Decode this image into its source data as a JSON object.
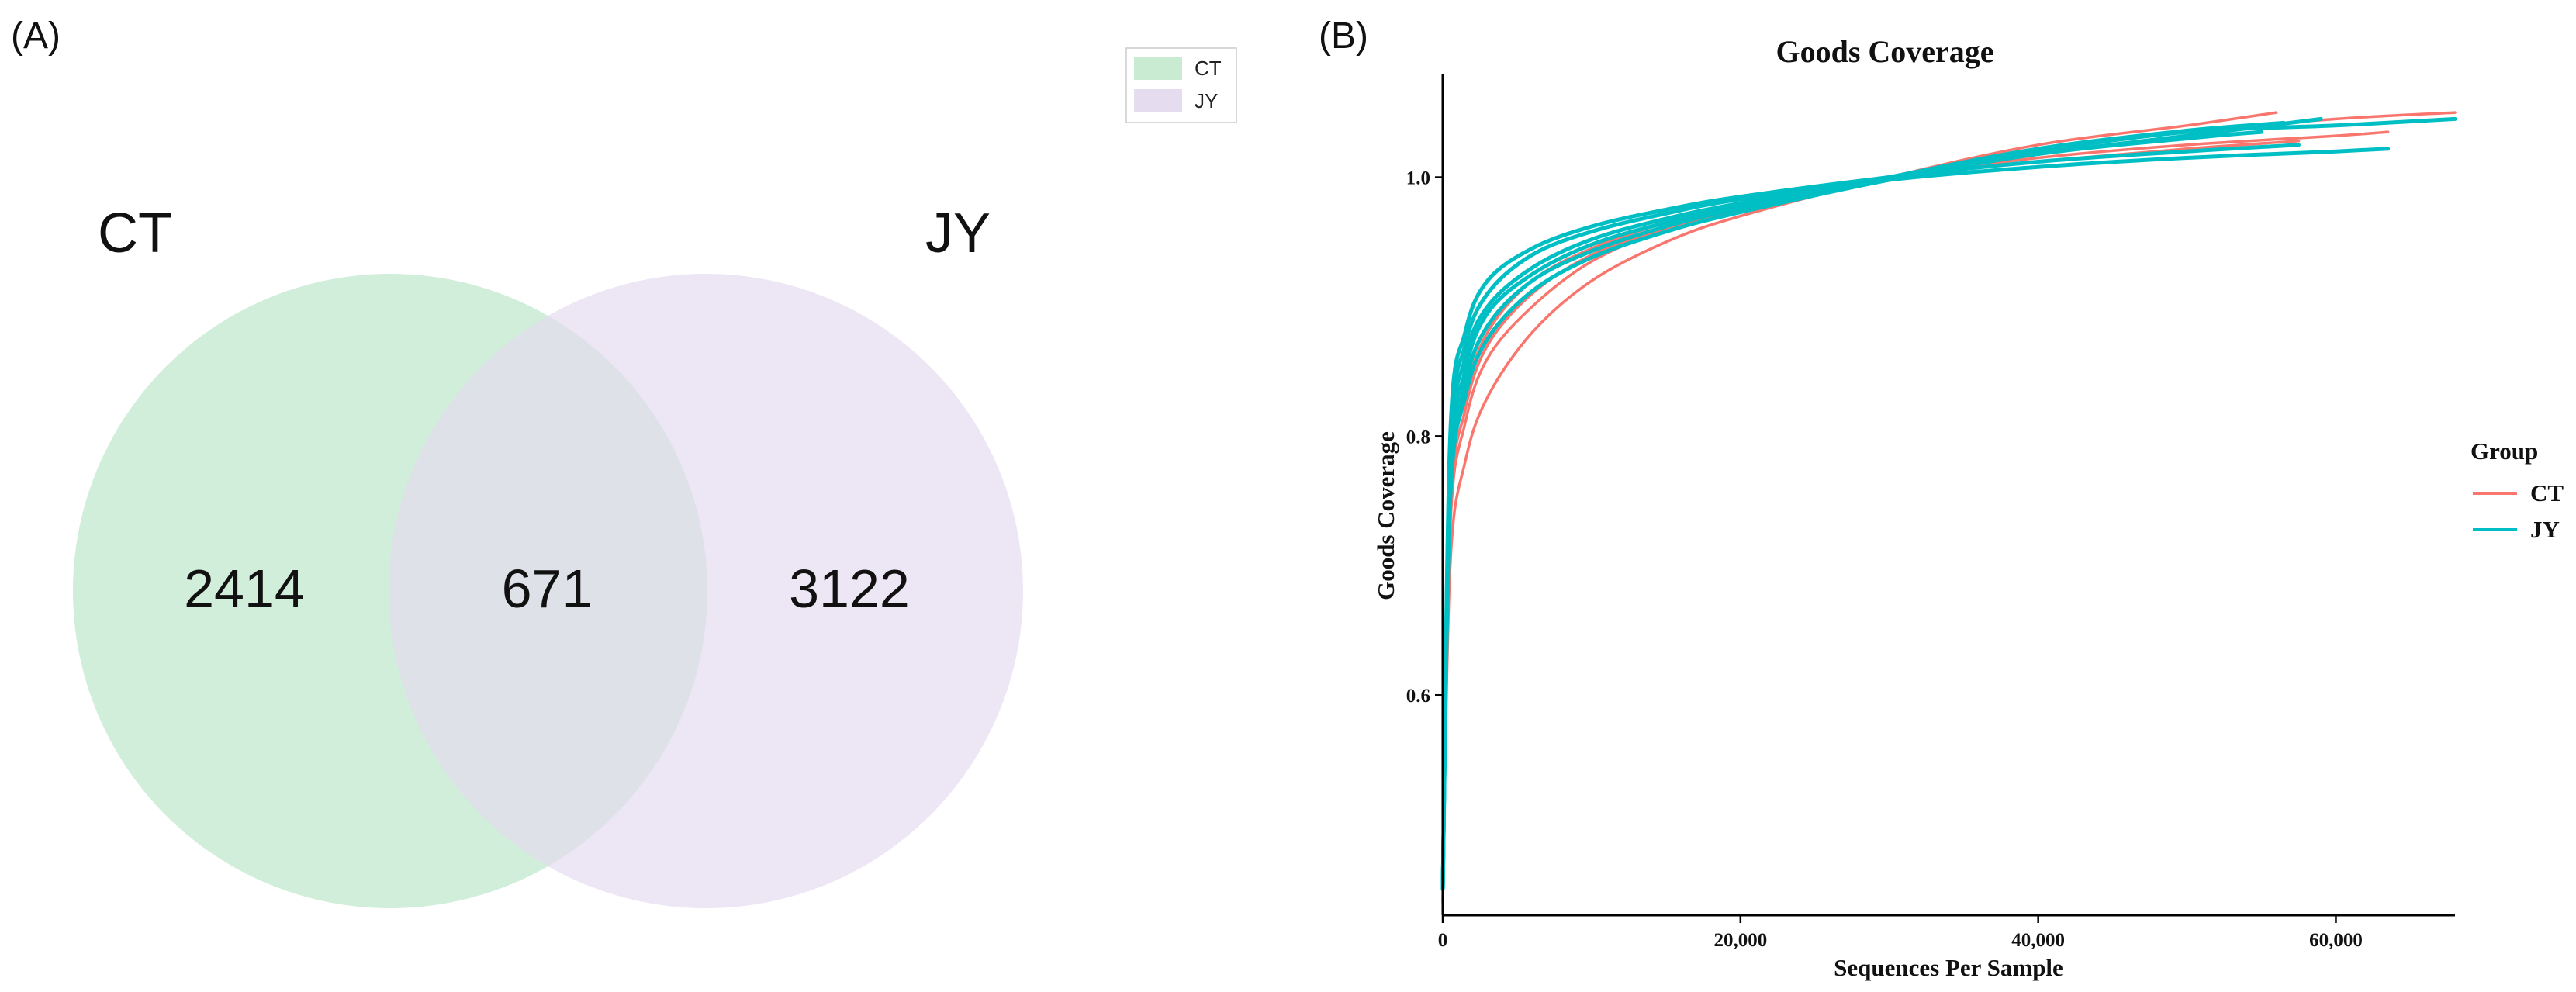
{
  "panel_a": {
    "label": "(A)",
    "legend": [
      {
        "name": "CT",
        "color": "#c8ebd2"
      },
      {
        "name": "JY",
        "color": "#e6dcef"
      }
    ],
    "set_labels": {
      "left": "CT",
      "right": "JY"
    },
    "colors": {
      "left": "#c8ebd2",
      "right": "#e6dcef",
      "overlap": "#c9ddd8"
    }
  },
  "panel_b": {
    "label": "(B)"
  },
  "chart_data": [
    {
      "type": "venn",
      "sets": [
        "CT",
        "JY"
      ],
      "regions": {
        "CT_only": "2414",
        "shared": "671",
        "JY_only": "3122"
      }
    },
    {
      "type": "line",
      "title": "Goods Coverage",
      "xlabel": "Sequences Per Sample",
      "ylabel": "Goods Coverage",
      "xlim": [
        0,
        68000
      ],
      "ylim": [
        0.43,
        1.08
      ],
      "xticks": [
        0,
        20000,
        40000,
        60000
      ],
      "xtick_labels": [
        "0",
        "20,000",
        "40,000",
        "60,000"
      ],
      "yticks": [
        0.6,
        0.8,
        1.0
      ],
      "ytick_labels": [
        "0.6",
        "0.8",
        "1.0"
      ],
      "grid": false,
      "legend": {
        "title": "Group",
        "placement": "right"
      },
      "groups": [
        {
          "name": "CT",
          "color": "#f8766d"
        },
        {
          "name": "JY",
          "color": "#00bfc4"
        }
      ],
      "series": [
        {
          "group": "CT",
          "points": [
            [
              0,
              0.44
            ],
            [
              500,
              0.7
            ],
            [
              1500,
              0.78
            ],
            [
              3000,
              0.83
            ],
            [
              6000,
              0.88
            ],
            [
              10000,
              0.92
            ],
            [
              15000,
              0.95
            ],
            [
              20000,
              0.97
            ],
            [
              30000,
              1.0
            ],
            [
              40000,
              1.025
            ],
            [
              50000,
              1.04
            ],
            [
              56000,
              1.05
            ]
          ]
        },
        {
          "group": "CT",
          "points": [
            [
              0,
              0.45
            ],
            [
              500,
              0.73
            ],
            [
              1500,
              0.81
            ],
            [
              3000,
              0.86
            ],
            [
              6000,
              0.9
            ],
            [
              10000,
              0.935
            ],
            [
              15000,
              0.96
            ],
            [
              20000,
              0.975
            ],
            [
              30000,
              1.0
            ],
            [
              40000,
              1.02
            ],
            [
              50000,
              1.035
            ],
            [
              60000,
              1.045
            ],
            [
              68000,
              1.05
            ]
          ]
        },
        {
          "group": "CT",
          "points": [
            [
              0,
              0.45
            ],
            [
              500,
              0.74
            ],
            [
              1500,
              0.82
            ],
            [
              3000,
              0.87
            ],
            [
              6000,
              0.91
            ],
            [
              10000,
              0.94
            ],
            [
              15000,
              0.96
            ],
            [
              20000,
              0.978
            ],
            [
              30000,
              1.0
            ],
            [
              40000,
              1.015
            ],
            [
              50000,
              1.025
            ],
            [
              60000,
              1.032
            ],
            [
              63500,
              1.035
            ]
          ]
        },
        {
          "group": "CT",
          "points": [
            [
              0,
              0.45
            ],
            [
              500,
              0.75
            ],
            [
              1500,
              0.83
            ],
            [
              3000,
              0.88
            ],
            [
              6000,
              0.92
            ],
            [
              10000,
              0.945
            ],
            [
              15000,
              0.965
            ],
            [
              20000,
              0.98
            ],
            [
              30000,
              1.0
            ],
            [
              40000,
              1.012
            ],
            [
              50000,
              1.022
            ],
            [
              57500,
              1.028
            ]
          ]
        },
        {
          "group": "JY",
          "points": [
            [
              0,
              0.45
            ],
            [
              500,
              0.8
            ],
            [
              1500,
              0.88
            ],
            [
              3000,
              0.92
            ],
            [
              6000,
              0.945
            ],
            [
              10000,
              0.962
            ],
            [
              15000,
              0.975
            ],
            [
              20000,
              0.985
            ],
            [
              30000,
              1.0
            ],
            [
              40000,
              1.012
            ],
            [
              50000,
              1.02
            ],
            [
              57500,
              1.025
            ]
          ]
        },
        {
          "group": "JY",
          "points": [
            [
              0,
              0.45
            ],
            [
              500,
              0.79
            ],
            [
              1500,
              0.87
            ],
            [
              3000,
              0.91
            ],
            [
              6000,
              0.94
            ],
            [
              10000,
              0.958
            ],
            [
              15000,
              0.972
            ],
            [
              20000,
              0.983
            ],
            [
              30000,
              0.998
            ],
            [
              40000,
              1.008
            ],
            [
              50000,
              1.015
            ],
            [
              60000,
              1.02
            ],
            [
              63500,
              1.022
            ]
          ]
        },
        {
          "group": "JY",
          "points": [
            [
              0,
              0.45
            ],
            [
              500,
              0.78
            ],
            [
              1500,
              0.86
            ],
            [
              3000,
              0.9
            ],
            [
              6000,
              0.93
            ],
            [
              10000,
              0.952
            ],
            [
              15000,
              0.968
            ],
            [
              20000,
              0.98
            ],
            [
              30000,
              1.0
            ],
            [
              40000,
              1.018
            ],
            [
              50000,
              1.032
            ],
            [
              59000,
              1.045
            ]
          ]
        },
        {
          "group": "JY",
          "points": [
            [
              0,
              0.45
            ],
            [
              500,
              0.77
            ],
            [
              1500,
              0.85
            ],
            [
              3000,
              0.895
            ],
            [
              6000,
              0.925
            ],
            [
              10000,
              0.948
            ],
            [
              15000,
              0.965
            ],
            [
              20000,
              0.978
            ],
            [
              30000,
              1.0
            ],
            [
              40000,
              1.02
            ],
            [
              50000,
              1.035
            ],
            [
              60000,
              1.04
            ],
            [
              68000,
              1.045
            ]
          ]
        },
        {
          "group": "JY",
          "points": [
            [
              0,
              0.45
            ],
            [
              500,
              0.76
            ],
            [
              1500,
              0.84
            ],
            [
              3000,
              0.885
            ],
            [
              6000,
              0.92
            ],
            [
              10000,
              0.943
            ],
            [
              15000,
              0.962
            ],
            [
              20000,
              0.976
            ],
            [
              30000,
              1.0
            ],
            [
              40000,
              1.022
            ],
            [
              50000,
              1.036
            ],
            [
              56500,
              1.042
            ]
          ]
        },
        {
          "group": "JY",
          "points": [
            [
              0,
              0.45
            ],
            [
              500,
              0.75
            ],
            [
              1500,
              0.83
            ],
            [
              3000,
              0.875
            ],
            [
              6000,
              0.912
            ],
            [
              10000,
              0.938
            ],
            [
              15000,
              0.958
            ],
            [
              20000,
              0.973
            ],
            [
              30000,
              0.998
            ],
            [
              40000,
              1.018
            ],
            [
              50000,
              1.03
            ],
            [
              55000,
              1.035
            ]
          ]
        }
      ]
    }
  ]
}
